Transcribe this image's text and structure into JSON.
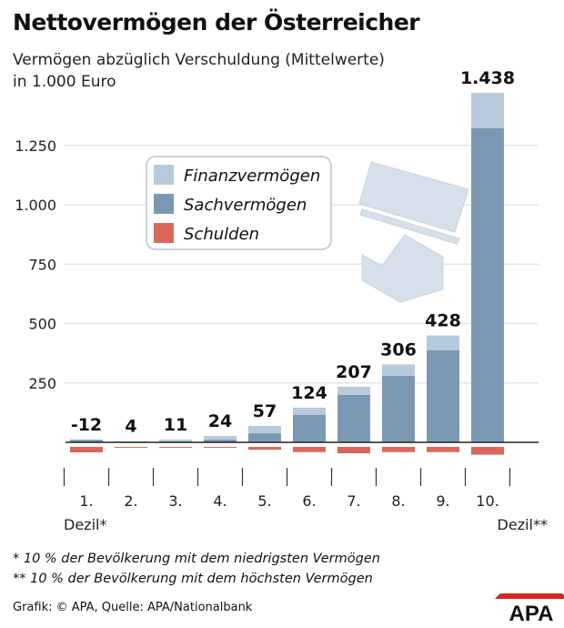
{
  "title": "Nettovermögen der Österreicher",
  "subtitle": "Vermögen abzüglich Verschuldung (Mittelwerte)",
  "unit": "in 1.000 Euro",
  "footnotes": [
    "* 10 % der Bevölkerung mit dem niedrigsten Vermögen",
    "** 10 % der Bevölkerung mit dem höchsten Vermögen"
  ],
  "source": "Grafik: © APA, Quelle: APA/Nationalbank",
  "logo": "APA",
  "chart_data": {
    "type": "bar",
    "stacked": true,
    "categories": [
      "1.",
      "2.",
      "3.",
      "4.",
      "5.",
      "6.",
      "7.",
      "8.",
      "9.",
      "10."
    ],
    "category_sublabels": {
      "first": "Dezil*",
      "last": "Dezil**"
    },
    "ylim": [
      -40,
      1480
    ],
    "yticks": [
      250,
      500,
      750,
      1000,
      1250
    ],
    "ytick_labels": [
      "250",
      "500",
      "750",
      "1.000",
      "1.250"
    ],
    "grid": true,
    "legend_placement": "top-left",
    "series": [
      {
        "name": "Sachvermögen",
        "color": "#7b98b3",
        "values": [
          11,
          2,
          4,
          12,
          38,
          115,
          200,
          280,
          387,
          1322
        ]
      },
      {
        "name": "Finanzvermögen",
        "color": "#b7cadc",
        "values": [
          0,
          3,
          8,
          15,
          31,
          31,
          34,
          48,
          63,
          149
        ]
      },
      {
        "name": "Schulden",
        "color": "#d9685a",
        "values": [
          -23,
          -1,
          -1,
          -3,
          -12,
          -22,
          -27,
          -22,
          -22,
          -33
        ]
      }
    ],
    "net_labels": [
      "-12",
      "4",
      "11",
      "24",
      "57",
      "124",
      "207",
      "306",
      "428",
      "1.438"
    ],
    "legend_order": [
      "Finanzvermögen",
      "Sachvermögen",
      "Schulden"
    ]
  }
}
